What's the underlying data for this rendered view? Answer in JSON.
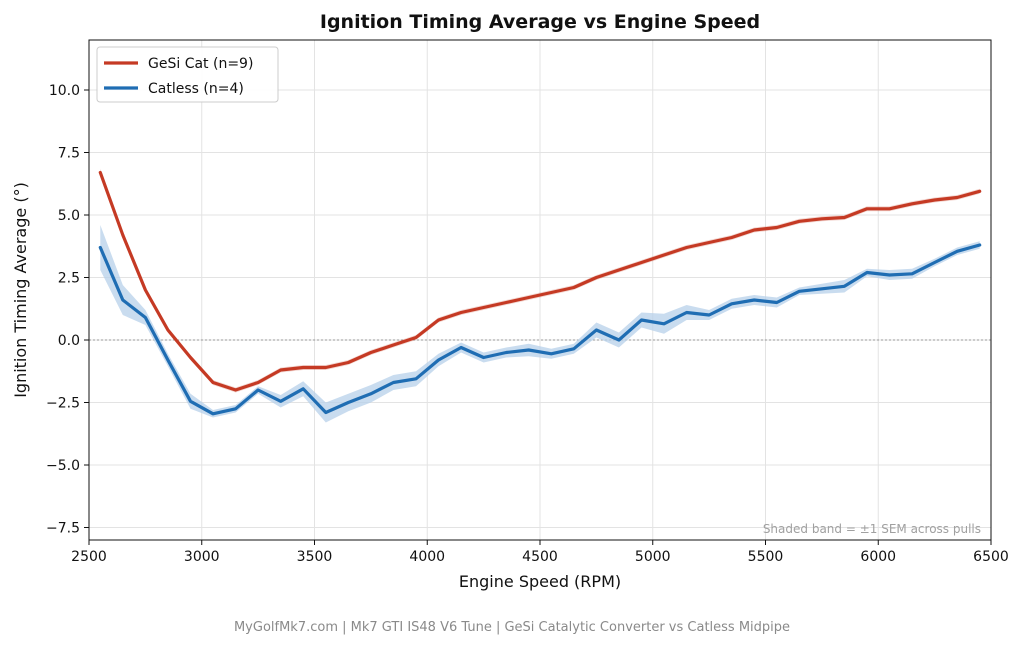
{
  "chart_data": {
    "type": "line",
    "title": "Ignition Timing Average vs Engine Speed",
    "xlabel": "Engine Speed (RPM)",
    "ylabel": "Ignition Timing Average (°)",
    "xlim": [
      2500,
      6500
    ],
    "ylim": [
      -8,
      12
    ],
    "xticks": [
      2500,
      3000,
      3500,
      4000,
      4500,
      5000,
      5500,
      6000,
      6500
    ],
    "xtick_labels": [
      "2500",
      "3000",
      "3500",
      "4000",
      "4500",
      "5000",
      "5500",
      "6000",
      "6500"
    ],
    "yticks": [
      -7.5,
      -5.0,
      -2.5,
      0.0,
      2.5,
      5.0,
      7.5,
      10.0
    ],
    "ytick_labels": [
      "−7.5",
      "−5.0",
      "−2.5",
      "0.0",
      "2.5",
      "5.0",
      "7.5",
      "10.0"
    ],
    "grid": true,
    "legend_position": "top-left",
    "zero_reference_line": true,
    "annotation": "Shaded band = ±1 SEM across pulls",
    "x": [
      2550,
      2650,
      2750,
      2850,
      2950,
      3050,
      3150,
      3250,
      3350,
      3450,
      3550,
      3650,
      3750,
      3850,
      3950,
      4050,
      4150,
      4250,
      4350,
      4450,
      4550,
      4650,
      4750,
      4850,
      4950,
      5050,
      5150,
      5250,
      5350,
      5450,
      5550,
      5650,
      5750,
      5850,
      5950,
      6050,
      6150,
      6250,
      6350,
      6450
    ],
    "series": [
      {
        "name": "GeSi Cat (n=9)",
        "color": "#c53a24",
        "values": [
          6.7,
          4.2,
          2.0,
          0.4,
          -0.7,
          -1.7,
          -2.0,
          -1.7,
          -1.2,
          -1.1,
          -1.1,
          -0.9,
          -0.5,
          -0.2,
          0.1,
          0.8,
          1.1,
          1.3,
          1.5,
          1.7,
          1.9,
          2.1,
          2.5,
          2.8,
          3.1,
          3.4,
          3.7,
          3.9,
          4.1,
          4.4,
          4.5,
          4.75,
          4.85,
          4.9,
          5.25,
          5.25,
          5.45,
          5.6,
          5.7,
          5.95
        ],
        "sem": [
          0.15,
          0.15,
          0.1,
          0.1,
          0.1,
          0.1,
          0.1,
          0.1,
          0.1,
          0.1,
          0.1,
          0.1,
          0.1,
          0.1,
          0.1,
          0.1,
          0.1,
          0.1,
          0.1,
          0.1,
          0.1,
          0.1,
          0.1,
          0.1,
          0.1,
          0.1,
          0.1,
          0.1,
          0.1,
          0.1,
          0.1,
          0.1,
          0.1,
          0.1,
          0.1,
          0.1,
          0.1,
          0.1,
          0.1,
          0.1
        ]
      },
      {
        "name": "Catless (n=4)",
        "color": "#1f6db3",
        "band_color": "#b7d0ea",
        "values": [
          3.7,
          1.6,
          0.9,
          -0.8,
          -2.45,
          -2.95,
          -2.75,
          -2.0,
          -2.45,
          -1.95,
          -2.9,
          -2.5,
          -2.15,
          -1.7,
          -1.55,
          -0.8,
          -0.3,
          -0.7,
          -0.5,
          -0.4,
          -0.55,
          -0.35,
          0.4,
          0.0,
          0.8,
          0.65,
          1.1,
          1.0,
          1.45,
          1.6,
          1.5,
          1.95,
          2.05,
          2.15,
          2.7,
          2.6,
          2.65,
          3.1,
          3.55,
          3.8
        ],
        "sem": [
          0.9,
          0.6,
          0.3,
          0.25,
          0.3,
          0.15,
          0.15,
          0.15,
          0.25,
          0.3,
          0.4,
          0.35,
          0.35,
          0.3,
          0.3,
          0.25,
          0.2,
          0.2,
          0.2,
          0.25,
          0.2,
          0.2,
          0.3,
          0.3,
          0.3,
          0.4,
          0.3,
          0.2,
          0.2,
          0.2,
          0.2,
          0.15,
          0.2,
          0.25,
          0.15,
          0.2,
          0.2,
          0.15,
          0.15,
          0.15
        ]
      }
    ]
  },
  "footer": {
    "text": "MyGolfMk7.com  |  Mk7 GTI IS48 V6 Tune  |  GeSi Catalytic Converter vs Catless Midpipe"
  }
}
